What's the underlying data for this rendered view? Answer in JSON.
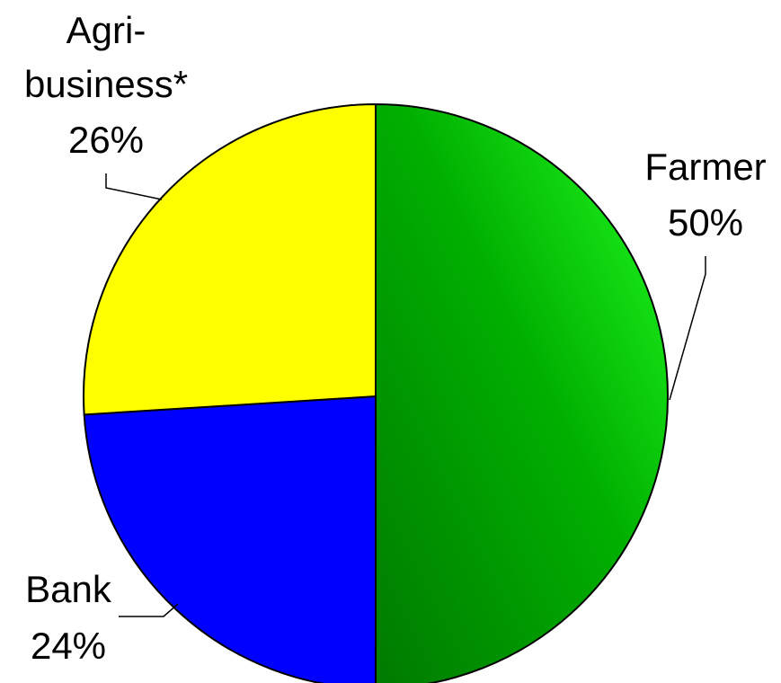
{
  "chart_data": {
    "type": "pie",
    "slices": [
      {
        "label": "Farmer",
        "value": 50,
        "value_label": "50%",
        "color": "#00c800"
      },
      {
        "label": "Bank",
        "value": 24,
        "value_label": "24%",
        "color": "#0000ff"
      },
      {
        "label": "Agri-\nbusiness*",
        "value": 26,
        "value_label": "26%",
        "color": "#ffff00"
      }
    ],
    "title": "",
    "legend": "none",
    "labels": "outside-with-leader-lines"
  }
}
